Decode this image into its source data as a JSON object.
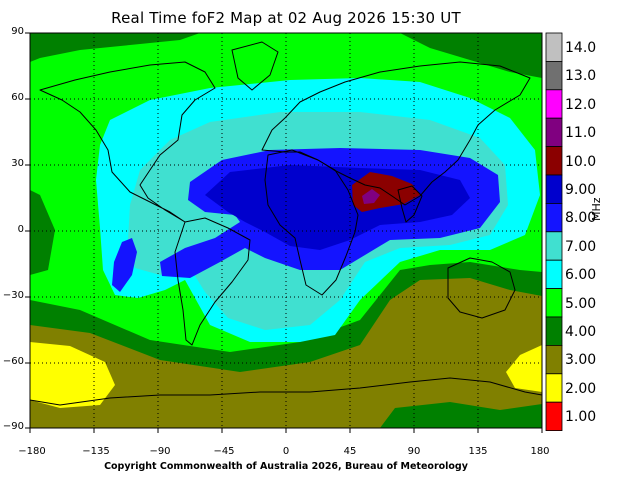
{
  "title": "Real Time foF2 Map at 02 Aug 2026 15:30 UT",
  "copyright": "Copyright Commonwealth of Australia 2026, Bureau of Meteorology",
  "y_ticks": [
    "90",
    "60",
    "30",
    "0",
    "−30",
    "−60",
    "−90"
  ],
  "x_ticks": [
    "−180",
    "−135",
    "−90",
    "−45",
    "0",
    "45",
    "90",
    "135",
    "180"
  ],
  "colorbar": {
    "unit": "MHz",
    "levels": [
      {
        "label": "14.0",
        "color": "#c0c0c0"
      },
      {
        "label": "13.0",
        "color": "#707070"
      },
      {
        "label": "12.0",
        "color": "#ff00ff"
      },
      {
        "label": "11.0",
        "color": "#800080"
      },
      {
        "label": "10.0",
        "color": "#8b0000"
      },
      {
        "label": "9.00",
        "color": "#0000cd"
      },
      {
        "label": "8.00",
        "color": "#1414ff"
      },
      {
        "label": "7.00",
        "color": "#40e0d0"
      },
      {
        "label": "6.00",
        "color": "#00ffff"
      },
      {
        "label": "5.00",
        "color": "#00ff00"
      },
      {
        "label": "4.00",
        "color": "#008000"
      },
      {
        "label": "3.00",
        "color": "#808000"
      },
      {
        "label": "2.00",
        "color": "#ffff00"
      },
      {
        "label": "1.00",
        "color": "#ff0000"
      }
    ]
  },
  "map": {
    "projection": "equirectangular",
    "lon_range": [
      -180,
      180
    ],
    "lat_range": [
      -90,
      90
    ],
    "grid": "dotted, every 45° longitude and 30° latitude",
    "peak_region": "10 MHz over Arabia / Horn of Africa"
  }
}
